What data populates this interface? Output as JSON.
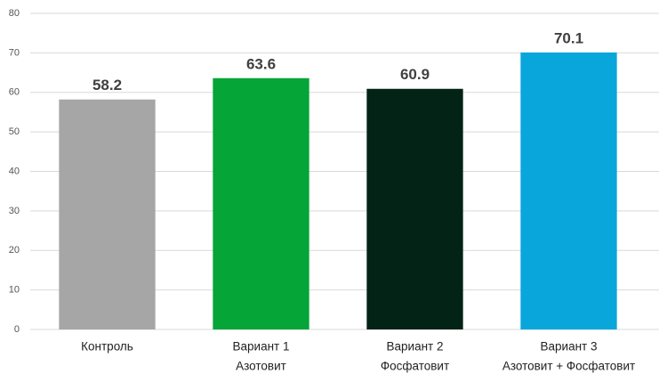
{
  "chart_data": {
    "type": "bar",
    "categories": [
      [
        "Контроль"
      ],
      [
        "Вариант 1",
        "Азотовит"
      ],
      [
        "Вариант 2",
        "Фосфатовит"
      ],
      [
        "Вариант 3",
        "Азотовит + Фосфатовит"
      ]
    ],
    "values": [
      58.2,
      63.6,
      60.9,
      70.1
    ],
    "colors": [
      "#a6a6a6",
      "#05a537",
      "#022316",
      "#09a6dc"
    ],
    "ylim": [
      0,
      80
    ],
    "yticks": [
      0,
      10,
      20,
      30,
      40,
      50,
      60,
      70,
      80
    ],
    "grid": true
  }
}
